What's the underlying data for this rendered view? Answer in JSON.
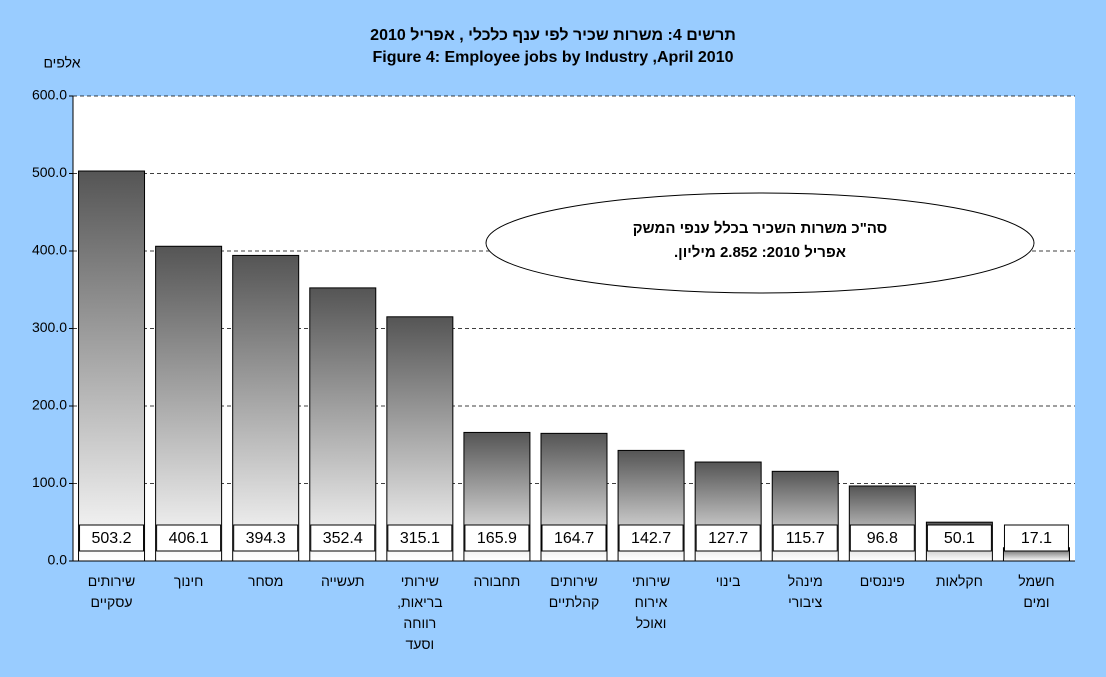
{
  "chart_data": {
    "type": "bar",
    "title": "תרשים 4:  משרות שכיר לפי ענף כלכלי , אפריל 2010",
    "subtitle": "Figure 4: Employee jobs by Industry ,April 2010",
    "y_label": "אלפים",
    "annotation": [
      "סה\"כ משרות השכיר בכלל ענפי המשק",
      "אפריל 2010:   2.852 מיליון."
    ],
    "categories": [
      "שירותים עסקיים",
      "חינוך",
      "מסחר",
      "תעשייה",
      "שירותי בריאות, רווחה וסעד",
      "תחבורה",
      "שירותים קהלתיים",
      "שירותי אירוח ואוכל",
      "בינוי",
      "מינהל ציבורי",
      "פיננסים",
      "חקלאות",
      "חשמל ומים"
    ],
    "values": [
      503.2,
      406.1,
      394.3,
      352.4,
      315.1,
      165.9,
      164.7,
      142.7,
      127.7,
      115.7,
      96.8,
      50.1,
      17.1
    ],
    "color": "#555555",
    "ylim": [
      0,
      600
    ],
    "yticks": [
      {
        "value": 0,
        "label": "0.0"
      },
      {
        "value": 100,
        "label": "100.0"
      },
      {
        "value": 200,
        "label": "200.0"
      },
      {
        "value": 300,
        "label": "300.0"
      },
      {
        "value": 400,
        "label": "400.0"
      },
      {
        "value": 500,
        "label": "500.0"
      },
      {
        "value": 600,
        "label": "600.0"
      }
    ],
    "grid": true
  }
}
